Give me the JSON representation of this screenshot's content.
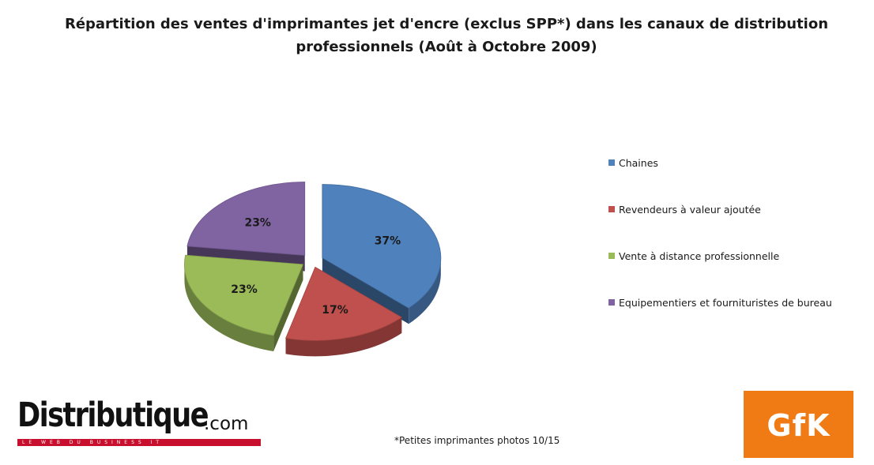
{
  "title": "Répartition des ventes d'imprimantes jet d'encre (exclus SPP*) dans les canaux de distribution professionnels  (Août à Octobre 2009)",
  "footnote": "*Petites imprimantes photos 10/15",
  "logos": {
    "distributique": {
      "name": "Distributique",
      "suffix": ".com",
      "tagline": "LE WEB DU BUSINESS IT"
    },
    "gfk": {
      "text": "GfK",
      "color": "#f07b14"
    }
  },
  "chart_data": {
    "type": "pie",
    "style": "3d-exploded",
    "title": "Répartition des ventes d'imprimantes jet d'encre (exclus SPP*) dans les canaux de distribution professionnels  (Août à Octobre 2009)",
    "legend_position": "right",
    "slices": [
      {
        "label": "Chaines",
        "value": 37,
        "display": "37%",
        "color": "#4f81bd"
      },
      {
        "label": "Revendeurs à valeur ajoutée",
        "value": 17,
        "display": "17%",
        "color": "#c0504d"
      },
      {
        "label": "Vente à distance professionnelle",
        "value": 23,
        "display": "23%",
        "color": "#9bbb59"
      },
      {
        "label": "Equipementiers et fournituristes de bureau",
        "value": 23,
        "display": "23%",
        "color": "#8064a2"
      }
    ]
  }
}
